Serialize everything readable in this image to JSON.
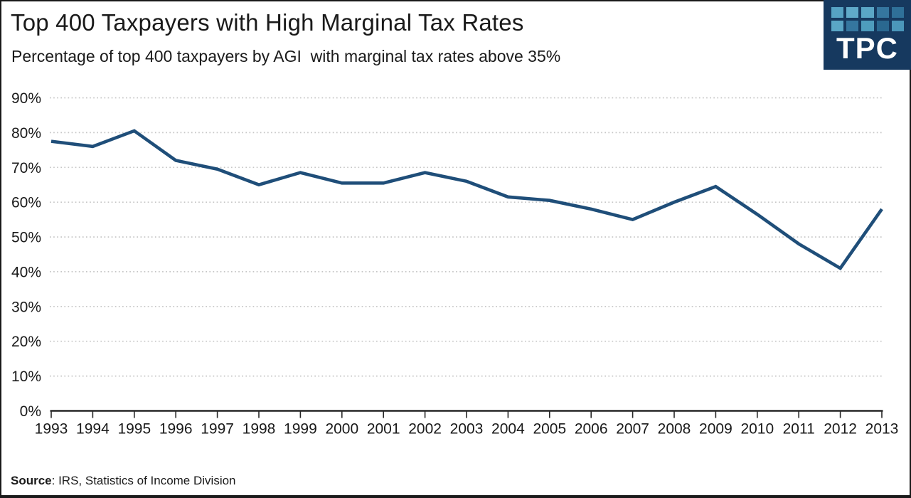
{
  "header": {
    "title": "Top 400 Taxpayers with High Marginal Tax Rates",
    "subtitle": "Percentage of top 400 taxpayers by AGI  with marginal tax rates above 35%"
  },
  "logo": {
    "text": "TPC",
    "bg": "#16395f",
    "squares": [
      "#56a3c4",
      "#60aac9",
      "#5aa6c6",
      "#35769f",
      "#2f7098",
      "#5aa6c6",
      "#35769f",
      "#4e9cbd",
      "#2a6890",
      "#4b97ba"
    ]
  },
  "source": {
    "label": "Source",
    "rest": ": IRS, Statistics of Income Division"
  },
  "chart_data": {
    "type": "line",
    "title": "Top 400 Taxpayers with High Marginal Tax Rates",
    "subtitle": "Percentage of top 400 taxpayers by AGI with marginal tax rates above 35%",
    "x": [
      1993,
      1994,
      1995,
      1996,
      1997,
      1998,
      1999,
      2000,
      2001,
      2002,
      2003,
      2004,
      2005,
      2006,
      2007,
      2008,
      2009,
      2010,
      2011,
      2012,
      2013
    ],
    "values": [
      77.5,
      76,
      80.5,
      72,
      69.5,
      65,
      68.5,
      65.5,
      65.5,
      68.5,
      66,
      61.5,
      60.5,
      58,
      55,
      60,
      64.5,
      56.5,
      48,
      41,
      58
    ],
    "series_name": "Percent of top 400 taxpayers with marginal tax rate above 35%",
    "ylim": [
      0,
      90
    ],
    "ytick_step": 10,
    "y_suffix": "%",
    "grid": "horizontal-dotted",
    "legend": "none",
    "line_color": "#1f4e79",
    "grid_color": "#c6c6c6",
    "axis_color": "#262626",
    "text_color": "#1a1a1a"
  }
}
